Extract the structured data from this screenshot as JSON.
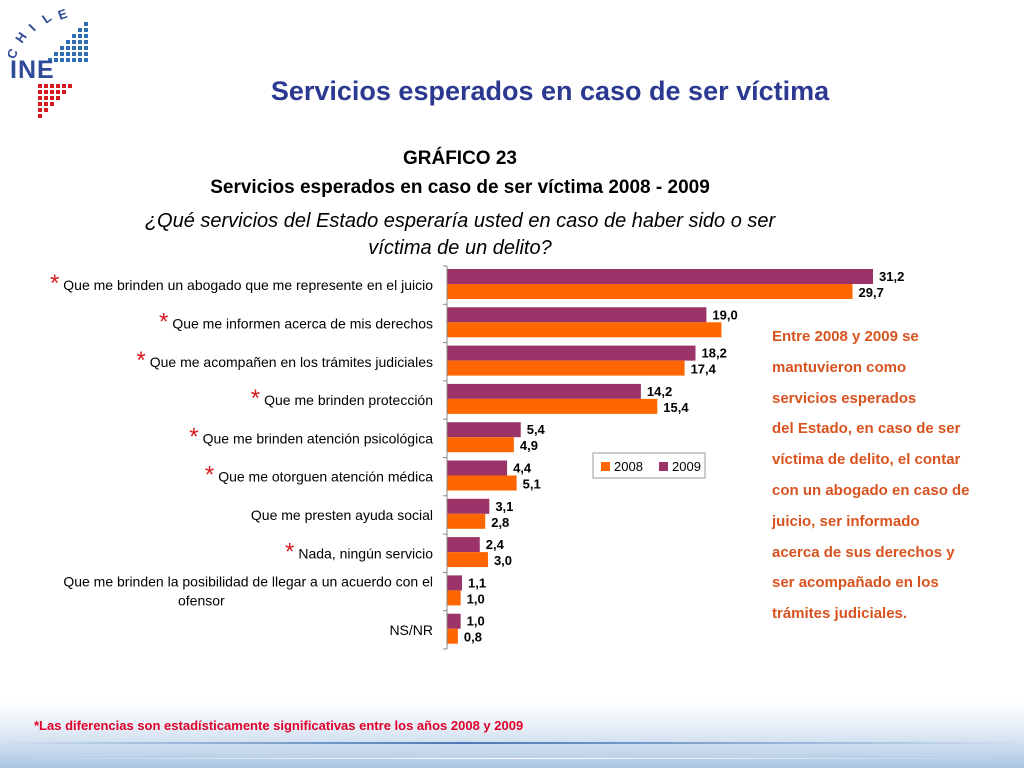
{
  "logo": {
    "letters": [
      "C",
      "H",
      "I",
      "L",
      "E"
    ],
    "word": "INE"
  },
  "slide_title": "Servicios esperados en caso de ser víctima",
  "chart_header": {
    "number": "GRÁFICO 23",
    "title": "Servicios esperados en caso de ser víctima 2008 - 2009",
    "question_line1": "¿Qué servicios del Estado esperaría usted en caso de haber sido o ser",
    "question_line2": "víctima de un delito?"
  },
  "chart_data": {
    "type": "bar",
    "orientation": "horizontal",
    "categories": [
      [
        "Que me brinden un abogado que me represente en el juicio"
      ],
      [
        "Que me informen acerca de mis derechos"
      ],
      [
        "Que me acompañen en los trámites judiciales"
      ],
      [
        "Que me brinden protección"
      ],
      [
        "Que me brinden atención psicológica"
      ],
      [
        "Que me otorguen atención médica"
      ],
      [
        "Que me presten ayuda social"
      ],
      [
        "Nada, ningún servicio"
      ],
      [
        "Que me brinden la posibilidad de llegar a un acuerdo con el",
        "ofensor"
      ],
      [
        "NS/NR"
      ]
    ],
    "significant": [
      true,
      true,
      true,
      true,
      true,
      true,
      false,
      true,
      false,
      false
    ],
    "significance_marker": "*",
    "series": [
      {
        "name": "2009",
        "color": "#9b3368",
        "values": [
          31.2,
          19.0,
          18.2,
          14.2,
          5.4,
          4.4,
          3.1,
          2.4,
          1.1,
          1.0
        ],
        "labels": [
          "31,2",
          "19,0",
          "18,2",
          "14,2",
          "5,4",
          "4,4",
          "3,1",
          "2,4",
          "1,1",
          "1,0"
        ]
      },
      {
        "name": "2008",
        "color": "#ff6600",
        "values": [
          29.7,
          20.1,
          17.4,
          15.4,
          4.9,
          5.1,
          2.8,
          3.0,
          1.0,
          0.8
        ],
        "labels": [
          "29,7",
          "",
          "17,4",
          "15,4",
          "4,9",
          "5,1",
          "2,8",
          "3,0",
          "1,0",
          "0,8"
        ]
      }
    ],
    "legend": {
      "placement": "center-right",
      "items": [
        {
          "name": "2008",
          "color": "#ff6600"
        },
        {
          "name": "2009",
          "color": "#9b3368"
        }
      ]
    },
    "xlim": [
      0,
      31.2
    ],
    "grid": false
  },
  "note": [
    "Entre 2008 y 2009 se",
    "mantuvieron como",
    "servicios esperados",
    "del Estado, en caso de ser",
    "víctima de delito, el contar",
    "con un abogado en caso de",
    "juicio, ser informado",
    "acerca de sus derechos y",
    "ser acompañado en los",
    "trámites judiciales."
  ],
  "footnote": "*Las diferencias son estadísticamente significativas entre los años 2008 y 2009"
}
